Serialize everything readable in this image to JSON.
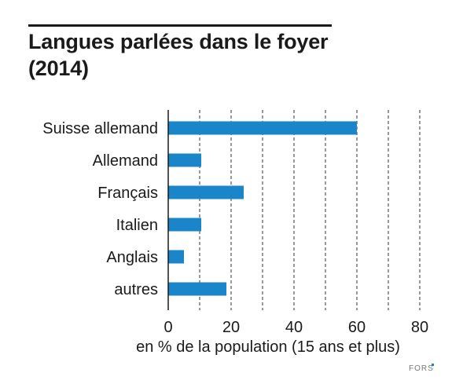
{
  "title": {
    "line1": "Langues parlées dans le foyer",
    "line2": "(2014)"
  },
  "chart_data": {
    "type": "bar",
    "orientation": "horizontal",
    "categories": [
      "Suisse allemand",
      "Allemand",
      "Français",
      "Italien",
      "Anglais",
      "autres"
    ],
    "values": [
      60,
      10.5,
      24,
      10.5,
      5,
      18.5
    ],
    "xlabel": "en % de la population (15 ans et plus)",
    "xlim": [
      0,
      82
    ],
    "xticks": [
      0,
      20,
      40,
      60,
      80
    ],
    "grid": "vertical dashed every 10",
    "grid_step": 10,
    "bar_color": "#1a85c9",
    "legend": "none"
  },
  "logo": {
    "text": "FORS"
  }
}
